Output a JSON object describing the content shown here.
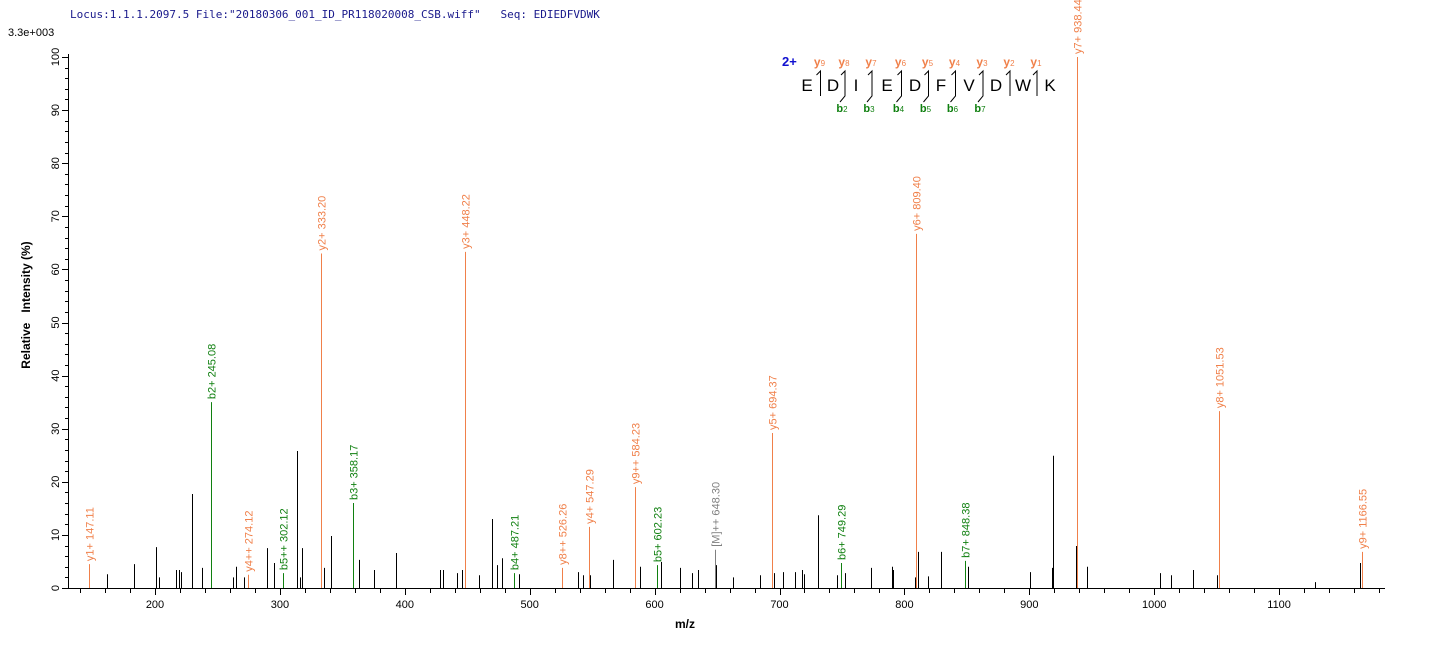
{
  "header": {
    "locus": "Locus:1.1.1.2097.5",
    "file": "File:\"20180306_001_ID_PR118020008_CSB.wiff\"",
    "seq": "Seq: EDIEDFVDWK"
  },
  "scale_label": "3.3e+003",
  "colors": {
    "y_ion": "#f0804a",
    "b_ion": "#108010",
    "precursor": "#808080",
    "other": "#000000",
    "charge": "#1010d0"
  },
  "sequence": {
    "charge": "2+",
    "residues": [
      "E",
      "D",
      "I",
      "E",
      "D",
      "F",
      "V",
      "D",
      "W",
      "K"
    ],
    "y_labels": [
      {
        "ion": "y",
        "n": "9"
      },
      {
        "ion": "y",
        "n": "8"
      },
      {
        "ion": "y",
        "n": "7"
      },
      {
        "ion": "y",
        "n": "6"
      },
      {
        "ion": "y",
        "n": "5"
      },
      {
        "ion": "y",
        "n": "4"
      },
      {
        "ion": "y",
        "n": "3"
      },
      {
        "ion": "y",
        "n": "2"
      },
      {
        "ion": "y",
        "n": "1"
      }
    ],
    "b_labels": [
      {
        "ion": "b",
        "n": "2"
      },
      {
        "ion": "b",
        "n": "3"
      },
      {
        "ion": "b",
        "n": "4"
      },
      {
        "ion": "b",
        "n": "5"
      },
      {
        "ion": "b",
        "n": "6"
      },
      {
        "ion": "b",
        "n": "7"
      }
    ]
  },
  "chart_data": {
    "type": "bar",
    "xlabel": "m/z",
    "ylabel": "Relative   Intensity (%)",
    "xlim": [
      130,
      1185
    ],
    "ylim": [
      0,
      100
    ],
    "x_ticks": [
      200,
      300,
      400,
      500,
      600,
      700,
      800,
      900,
      1000,
      1100
    ],
    "y_ticks": [
      0,
      10,
      20,
      30,
      40,
      50,
      60,
      70,
      80,
      90,
      100
    ],
    "annotated_peaks": [
      {
        "mz": 147.11,
        "intensity": 4.5,
        "label": "y1+ 147.11",
        "type": "y_ion"
      },
      {
        "mz": 245.08,
        "intensity": 35,
        "label": "b2+ 245.08",
        "type": "b_ion"
      },
      {
        "mz": 274.12,
        "intensity": 2.5,
        "label": "y4++ 274.12",
        "type": "y_ion"
      },
      {
        "mz": 302.12,
        "intensity": 2.8,
        "label": "b5++ 302.12",
        "type": "b_ion"
      },
      {
        "mz": 333.2,
        "intensity": 63,
        "label": "y2+ 333.20",
        "type": "y_ion"
      },
      {
        "mz": 358.17,
        "intensity": 16,
        "label": "b3+ 358.17",
        "type": "b_ion"
      },
      {
        "mz": 448.22,
        "intensity": 63.3,
        "label": "y3+ 448.22",
        "type": "y_ion"
      },
      {
        "mz": 487.21,
        "intensity": 2.8,
        "label": "b4+ 487.21",
        "type": "b_ion"
      },
      {
        "mz": 526.26,
        "intensity": 3.8,
        "label": "y8++ 526.26",
        "type": "y_ion"
      },
      {
        "mz": 547.29,
        "intensity": 11.5,
        "label": "y4+ 547.29",
        "type": "y_ion"
      },
      {
        "mz": 584.23,
        "intensity": 19,
        "label": "y9++ 584.23",
        "type": "y_ion"
      },
      {
        "mz": 602.23,
        "intensity": 4.3,
        "label": "b5+ 602.23",
        "type": "b_ion"
      },
      {
        "mz": 648.3,
        "intensity": 7.2,
        "label": "[M]++ 648.30",
        "type": "precursor"
      },
      {
        "mz": 694.37,
        "intensity": 29.2,
        "label": "y5+ 694.37",
        "type": "y_ion"
      },
      {
        "mz": 749.29,
        "intensity": 4.7,
        "label": "b6+ 749.29",
        "type": "b_ion"
      },
      {
        "mz": 809.4,
        "intensity": 66.7,
        "label": "y6+ 809.40",
        "type": "y_ion"
      },
      {
        "mz": 848.38,
        "intensity": 5.1,
        "label": "b7+ 848.38",
        "type": "b_ion"
      },
      {
        "mz": 938.44,
        "intensity": 100,
        "label": "y7+ 938.44",
        "type": "y_ion"
      },
      {
        "mz": 1051.53,
        "intensity": 33.3,
        "label": "y8+ 1051.53",
        "type": "y_ion"
      },
      {
        "mz": 1166.55,
        "intensity": 6.8,
        "label": "y9+ 1166.55",
        "type": "y_ion"
      }
    ],
    "other_peaks": [
      [
        161.6,
        2.6
      ],
      [
        183.2,
        4.5
      ],
      [
        200.8,
        7.7
      ],
      [
        203.2,
        2
      ],
      [
        216.8,
        3.4
      ],
      [
        219.2,
        3.4
      ],
      [
        220.8,
        3
      ],
      [
        229.6,
        17.7
      ],
      [
        237.6,
        3.8
      ],
      [
        245.2,
        3.8
      ],
      [
        262.4,
        2
      ],
      [
        264.9,
        4
      ],
      [
        271.3,
        2
      ],
      [
        289.7,
        7.5
      ],
      [
        295.3,
        4.7
      ],
      [
        313.7,
        25.8
      ],
      [
        316.1,
        2
      ],
      [
        317.7,
        7.5
      ],
      [
        335.3,
        3.8
      ],
      [
        340.9,
        9.8
      ],
      [
        363.3,
        5.3
      ],
      [
        375.3,
        3.4
      ],
      [
        393,
        6.6
      ],
      [
        428.2,
        3.4
      ],
      [
        430.6,
        3.4
      ],
      [
        441.8,
        2.8
      ],
      [
        445.8,
        3.4
      ],
      [
        459.4,
        2.4
      ],
      [
        469.8,
        13
      ],
      [
        473.8,
        4.3
      ],
      [
        477.8,
        5.6
      ],
      [
        491.4,
        2.6
      ],
      [
        538.7,
        3
      ],
      [
        542.7,
        2.4
      ],
      [
        548.3,
        2.4
      ],
      [
        566.7,
        5.3
      ],
      [
        588.3,
        4
      ],
      [
        605.1,
        4.9
      ],
      [
        620.3,
        3.8
      ],
      [
        629.9,
        2.8
      ],
      [
        634.7,
        3.4
      ],
      [
        649.1,
        4.3
      ],
      [
        662.8,
        2
      ],
      [
        684.4,
        2.4
      ],
      [
        695.4,
        2.8
      ],
      [
        702.8,
        3
      ],
      [
        712.4,
        3
      ],
      [
        718,
        3.4
      ],
      [
        719.6,
        2.6
      ],
      [
        730.8,
        13.7
      ],
      [
        746,
        2.4
      ],
      [
        752.4,
        2.8
      ],
      [
        773.3,
        3.8
      ],
      [
        790.1,
        4
      ],
      [
        790.9,
        3.4
      ],
      [
        808.5,
        2
      ],
      [
        810.5,
        6.8
      ],
      [
        818.9,
        2.2
      ],
      [
        829.3,
        6.8
      ],
      [
        851,
        4
      ],
      [
        900.6,
        3
      ],
      [
        918.2,
        3.8
      ],
      [
        919,
        24.9
      ],
      [
        937.4,
        7.9
      ],
      [
        946.2,
        4
      ],
      [
        1004.6,
        2.8
      ],
      [
        1013.4,
        2.4
      ],
      [
        1031,
        3.4
      ],
      [
        1050.3,
        2.4
      ],
      [
        1128.7,
        1.1
      ],
      [
        1164.8,
        4.7
      ]
    ]
  }
}
